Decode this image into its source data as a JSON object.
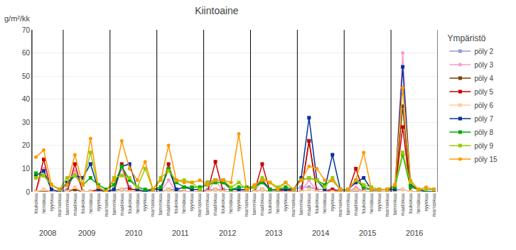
{
  "chart_data": {
    "type": "line",
    "title": "Kiintoaine",
    "ylabel": "g/m²/kk",
    "legend_title": "Ympäristö",
    "legend": "right",
    "grid": true,
    "ylim": [
      0,
      70
    ],
    "yticks": [
      0,
      10,
      20,
      30,
      40,
      50,
      60,
      70
    ],
    "categories": [
      "toukokuu",
      "heinäkuu",
      "syyskuu",
      "marraskuu",
      "tammikuu",
      "maaliskuu",
      "toukokuu",
      "heinäkuu",
      "syyskuu",
      "marraskuu",
      "tammikuu",
      "maaliskuu",
      "toukokuu",
      "heinäkuu",
      "syyskuu",
      "marraskuu",
      "tammikuu",
      "maaliskuu",
      "toukokuu",
      "heinäkuu",
      "syyskuu",
      "marraskuu",
      "tammikuu",
      "maaliskuu",
      "toukokuu",
      "heinäkuu",
      "syyskuu",
      "marraskuu",
      "tammikuu",
      "maaliskuu",
      "toukokuu",
      "heinäkuu",
      "syyskuu",
      "marraskuu",
      "tammikuu",
      "maaliskuu",
      "toukokuu",
      "heinäkuu",
      "syyskuu",
      "marraskuu",
      "tammikuu",
      "maaliskuu",
      "toukokuu",
      "heinäkuu",
      "syyskuu",
      "marraskuu",
      "tammikuu",
      "maaliskuu",
      "toukokuu",
      "heinäkuu",
      "syyskuu",
      "marraskuu"
    ],
    "x_groups": [
      {
        "label": "2008",
        "start": 0,
        "end": 3
      },
      {
        "label": "2009",
        "start": 4,
        "end": 9
      },
      {
        "label": "2010",
        "start": 10,
        "end": 15
      },
      {
        "label": "2011",
        "start": 16,
        "end": 21
      },
      {
        "label": "2012",
        "start": 22,
        "end": 27
      },
      {
        "label": "2013",
        "start": 28,
        "end": 33
      },
      {
        "label": "2014",
        "start": 34,
        "end": 39
      },
      {
        "label": "2015",
        "start": 40,
        "end": 45
      },
      {
        "label": "2016",
        "start": 46,
        "end": 51
      }
    ],
    "series": [
      {
        "name": "pöly 2",
        "color": "#9999DD",
        "marker": "square",
        "values": [
          0,
          1,
          0,
          0,
          1,
          1,
          0,
          0,
          1,
          0,
          1,
          1,
          2,
          0,
          0,
          0,
          0,
          1,
          1,
          0,
          0,
          0,
          1,
          1,
          1,
          1,
          1,
          0,
          0,
          1,
          0,
          1,
          1,
          1,
          2,
          2,
          1,
          1,
          1,
          1,
          0,
          0,
          1,
          1,
          0,
          0,
          1,
          1,
          0,
          0,
          0,
          0
        ]
      },
      {
        "name": "pöly 3",
        "color": "#FF99CC",
        "marker": "circle",
        "values": [
          0,
          10,
          0,
          0,
          0,
          9,
          0,
          0,
          0,
          0,
          0,
          10,
          0,
          0,
          0,
          0,
          0,
          5,
          0,
          0,
          0,
          0,
          0,
          5,
          0,
          0,
          0,
          0,
          0,
          5,
          0,
          0,
          0,
          0,
          0,
          5,
          0,
          0,
          0,
          0,
          0,
          2,
          0,
          0,
          0,
          0,
          0,
          60,
          0,
          0,
          0,
          0
        ]
      },
      {
        "name": "pöly 4",
        "color": "#7B3F00",
        "marker": "square",
        "values": [
          0,
          0,
          0,
          0,
          0,
          1,
          0,
          0,
          0,
          0,
          0,
          1,
          0,
          0,
          0,
          0,
          0,
          1,
          0,
          0,
          0,
          0,
          0,
          1,
          0,
          0,
          0,
          0,
          0,
          1,
          0,
          0,
          0,
          0,
          0,
          22,
          0,
          0,
          0,
          0,
          0,
          1,
          0,
          0,
          0,
          0,
          0,
          37,
          0,
          0,
          0,
          0
        ]
      },
      {
        "name": "pöly 5",
        "color": "#CC0000",
        "marker": "square",
        "values": [
          0,
          14,
          0,
          0,
          0,
          12,
          0,
          0,
          1,
          0,
          0,
          12,
          1,
          1,
          0,
          0,
          0,
          12,
          0,
          0,
          0,
          0,
          0,
          13,
          0,
          0,
          0,
          0,
          0,
          12,
          0,
          0,
          1,
          0,
          0,
          22,
          0,
          0,
          1,
          0,
          0,
          10,
          0,
          0,
          0,
          0,
          0,
          28,
          0,
          0,
          0,
          0
        ]
      },
      {
        "name": "pöly 6",
        "color": "#FFCC99",
        "marker": "square",
        "values": [
          0,
          1,
          0,
          0,
          0,
          2,
          0,
          0,
          0,
          0,
          0,
          1,
          0,
          0,
          0,
          0,
          0,
          1,
          0,
          0,
          0,
          0,
          0,
          1,
          0,
          0,
          0,
          0,
          0,
          1,
          0,
          0,
          0,
          0,
          0,
          1,
          0,
          0,
          0,
          0,
          0,
          1,
          0,
          0,
          0,
          0,
          0,
          1,
          0,
          0,
          0,
          0
        ]
      },
      {
        "name": "pöly 7",
        "color": "#003399",
        "marker": "square",
        "values": [
          7,
          9,
          1,
          0,
          4,
          7,
          6,
          12,
          1,
          0,
          1,
          11,
          12,
          1,
          0,
          1,
          1,
          10,
          1,
          2,
          1,
          1,
          4,
          5,
          5,
          1,
          1,
          1,
          2,
          5,
          1,
          1,
          1,
          1,
          6,
          32,
          5,
          1,
          16,
          1,
          1,
          4,
          6,
          1,
          1,
          1,
          1,
          54,
          3,
          1,
          0,
          0
        ]
      },
      {
        "name": "pöly 8",
        "color": "#00AA00",
        "marker": "square",
        "values": [
          8,
          7,
          3,
          1,
          3,
          7,
          3,
          6,
          3,
          1,
          3,
          11,
          5,
          2,
          1,
          1,
          2,
          10,
          4,
          2,
          2,
          2,
          3,
          4,
          4,
          1,
          2,
          2,
          2,
          4,
          1,
          1,
          2,
          1,
          5,
          6,
          5,
          3,
          5,
          1,
          1,
          5,
          2,
          1,
          1,
          1,
          2,
          16,
          2,
          1,
          1,
          1
        ]
      },
      {
        "name": "pöly 9",
        "color": "#99CC00",
        "marker": "square",
        "values": [
          6,
          7,
          3,
          1,
          6,
          7,
          3,
          17,
          2,
          0,
          6,
          7,
          6,
          2,
          10,
          1,
          6,
          9,
          5,
          5,
          4,
          1,
          4,
          5,
          5,
          2,
          4,
          1,
          2,
          6,
          4,
          2,
          4,
          1,
          5,
          6,
          5,
          2,
          6,
          1,
          1,
          5,
          3,
          2,
          1,
          1,
          3,
          17,
          4,
          1,
          1,
          1
        ]
      },
      {
        "name": "pöly 15",
        "color": "#FF9900",
        "marker": "circle",
        "values": [
          15,
          18,
          3,
          1,
          3,
          16,
          3,
          23,
          2,
          0,
          5,
          22,
          10,
          5,
          13,
          1,
          5,
          20,
          5,
          4,
          4,
          5,
          3,
          5,
          5,
          4,
          25,
          1,
          3,
          5,
          4,
          1,
          4,
          1,
          5,
          11,
          10,
          5,
          5,
          1,
          1,
          5,
          17,
          1,
          1,
          1,
          3,
          45,
          5,
          1,
          2,
          1
        ]
      }
    ]
  }
}
